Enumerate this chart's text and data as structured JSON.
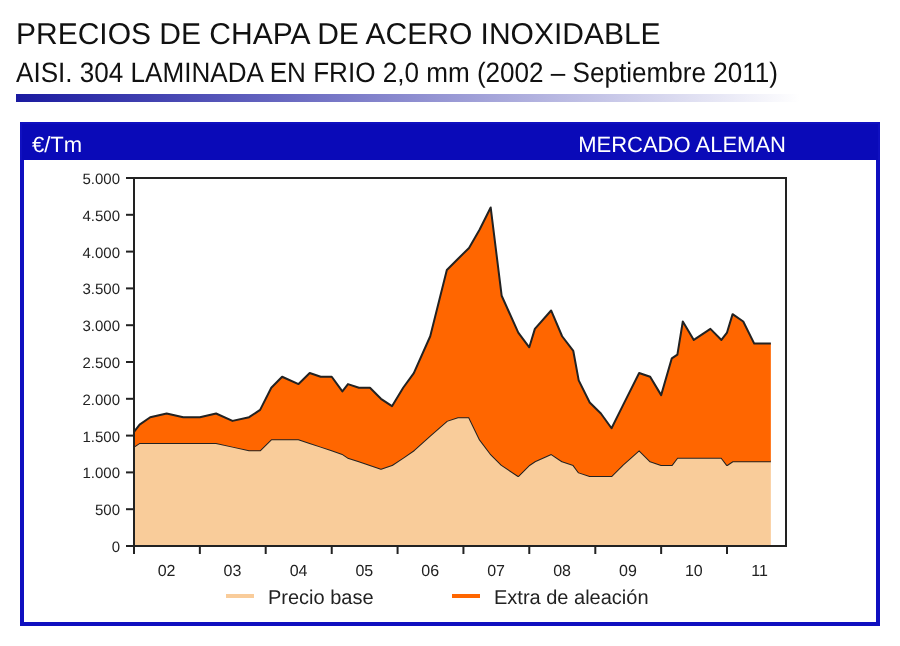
{
  "chart_data": {
    "type": "area",
    "stacked": true,
    "title": "PRECIOS DE CHAPA DE ACERO INOXIDABLE",
    "subtitle": "AISI. 304 LAMINADA EN FRIO 2,0 mm (2002 – Septiembre 2011)",
    "ylabel": "€/Tm",
    "annotations": [
      "MERCADO ALEMAN"
    ],
    "x": [
      "2002-01",
      "2002-02",
      "2002-04",
      "2002-07",
      "2002-10",
      "2003-01",
      "2003-04",
      "2003-07",
      "2003-10",
      "2003-12",
      "2004-02",
      "2004-04",
      "2004-07",
      "2004-09",
      "2004-11",
      "2005-01",
      "2005-03",
      "2005-04",
      "2005-06",
      "2005-08",
      "2005-10",
      "2005-12",
      "2006-02",
      "2006-04",
      "2006-07",
      "2006-10",
      "2006-12",
      "2007-02",
      "2007-04",
      "2007-06",
      "2007-08",
      "2007-11",
      "2008-01",
      "2008-02",
      "2008-05",
      "2008-07",
      "2008-09",
      "2008-10",
      "2008-12",
      "2009-02",
      "2009-04",
      "2009-06",
      "2009-09",
      "2009-11",
      "2010-01",
      "2010-03",
      "2010-04",
      "2010-05",
      "2010-07",
      "2010-10",
      "2010-12",
      "2011-01",
      "2011-02",
      "2011-04",
      "2011-06",
      "2011-09"
    ],
    "series": [
      {
        "name": "Precio base",
        "color": "#f9cc9a",
        "values": [
          1350,
          1400,
          1400,
          1400,
          1400,
          1400,
          1400,
          1350,
          1300,
          1300,
          1450,
          1450,
          1450,
          1400,
          1350,
          1300,
          1250,
          1200,
          1150,
          1100,
          1050,
          1100,
          1200,
          1300,
          1500,
          1700,
          1750,
          1750,
          1450,
          1250,
          1100,
          950,
          1100,
          1150,
          1250,
          1150,
          1100,
          1000,
          950,
          950,
          950,
          1100,
          1300,
          1150,
          1100,
          1100,
          1200,
          1200,
          1200,
          1200,
          1200,
          1100,
          1150,
          1150,
          1150,
          1150
        ]
      },
      {
        "name": "Extra de aleación",
        "color": "#ff6600",
        "values": [
          200,
          250,
          350,
          400,
          350,
          350,
          400,
          350,
          450,
          550,
          700,
          850,
          750,
          950,
          950,
          1000,
          850,
          1000,
          1000,
          1050,
          950,
          800,
          950,
          1050,
          1350,
          2050,
          2150,
          2300,
          2850,
          3350,
          2300,
          1950,
          1600,
          1800,
          1950,
          1700,
          1550,
          1250,
          1000,
          850,
          650,
          800,
          1050,
          1150,
          950,
          1450,
          1400,
          1850,
          1600,
          1750,
          1600,
          1800,
          2000,
          1900,
          1600,
          1600
        ]
      }
    ],
    "xlim": [
      "2002-01-01",
      "2011-11-24"
    ],
    "xticks": [
      {
        "value": "2002-01-01",
        "label": null
      },
      {
        "value": "2002-07-01",
        "label": "02"
      },
      {
        "value": "2003-01-01",
        "label": null
      },
      {
        "value": "2003-07-01",
        "label": "03"
      },
      {
        "value": "2004-01-01",
        "label": null
      },
      {
        "value": "2004-07-01",
        "label": "04"
      },
      {
        "value": "2005-01-01",
        "label": null
      },
      {
        "value": "2005-07-01",
        "label": "05"
      },
      {
        "value": "2006-01-01",
        "label": null
      },
      {
        "value": "2006-07-01",
        "label": "06"
      },
      {
        "value": "2007-01-01",
        "label": null
      },
      {
        "value": "2007-07-01",
        "label": "07"
      },
      {
        "value": "2008-01-01",
        "label": null
      },
      {
        "value": "2008-07-01",
        "label": "08"
      },
      {
        "value": "2009-01-01",
        "label": null
      },
      {
        "value": "2009-07-01",
        "label": "09"
      },
      {
        "value": "2010-01-01",
        "label": null
      },
      {
        "value": "2010-07-01",
        "label": "10"
      },
      {
        "value": "2011-01-01",
        "label": null
      },
      {
        "value": "2011-07-01",
        "label": "11"
      }
    ],
    "ylim": [
      0,
      5000
    ],
    "yticks": [
      0,
      {
        "value": 500,
        "label": "500"
      },
      {
        "value": 1000,
        "label": "1.000"
      },
      {
        "value": 1500,
        "label": "1.500"
      },
      {
        "value": 2000,
        "label": "2.000"
      },
      {
        "value": 2500,
        "label": "2.500"
      },
      {
        "value": 3000,
        "label": "3.000"
      },
      {
        "value": 3500,
        "label": "3.500"
      },
      {
        "value": 4000,
        "label": "4.000"
      },
      {
        "value": 4500,
        "label": "4.500"
      },
      {
        "value": 5000,
        "label": "5.000"
      }
    ],
    "legend": "bottom"
  }
}
